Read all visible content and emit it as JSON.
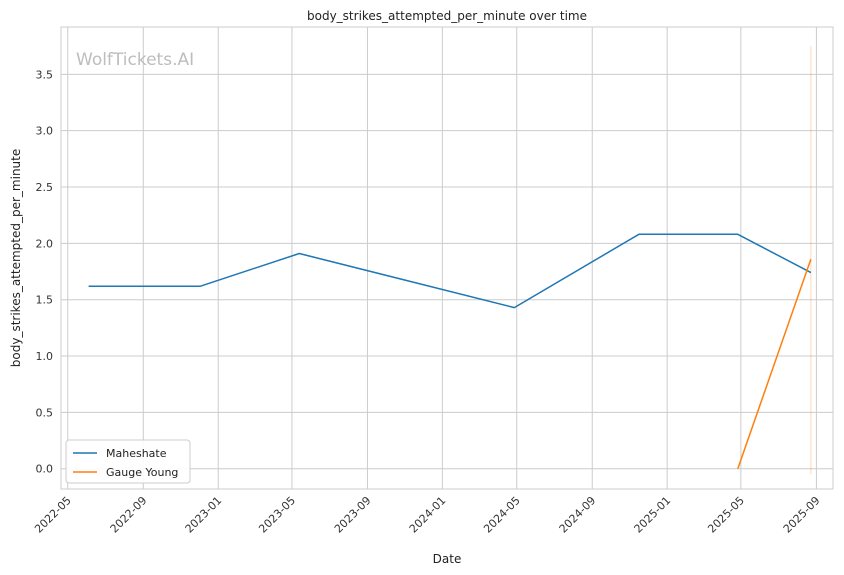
{
  "chart_data": {
    "type": "line",
    "title": "body_strikes_attempted_per_minute over time",
    "xlabel": "Date",
    "ylabel": "body_strikes_attempted_per_minute",
    "watermark": "WolfTickets.AI",
    "x_ticks": [
      "2022-05",
      "2022-09",
      "2023-01",
      "2023-05",
      "2023-09",
      "2024-01",
      "2024-05",
      "2024-09",
      "2025-01",
      "2025-05",
      "2025-09"
    ],
    "y_ticks": [
      "0.0",
      "0.5",
      "1.0",
      "1.5",
      "2.0",
      "2.5",
      "3.0",
      "3.5"
    ],
    "xlim": [
      "2022-04-20",
      "2025-09-28"
    ],
    "ylim": [
      -0.18,
      3.92
    ],
    "grid": true,
    "legend_position": "lower-left",
    "series": [
      {
        "name": "Maheshate",
        "color": "#1f77b4",
        "x": [
          "2022-06-04",
          "2022-12-03",
          "2023-05-13",
          "2024-04-27",
          "2024-11-16",
          "2025-04-26",
          "2025-08-23"
        ],
        "y": [
          1.62,
          1.62,
          1.91,
          1.43,
          2.08,
          2.08,
          1.74
        ]
      },
      {
        "name": "Gauge Young",
        "color": "#ff7f0e",
        "x": [
          "2025-04-26",
          "2025-08-23"
        ],
        "y": [
          0.0,
          1.86
        ]
      }
    ],
    "annotations": [
      {
        "kind": "vertical-line",
        "x": "2025-08-23",
        "y_range": [
          -0.05,
          3.75
        ],
        "color": "#ff7f0e"
      }
    ]
  }
}
